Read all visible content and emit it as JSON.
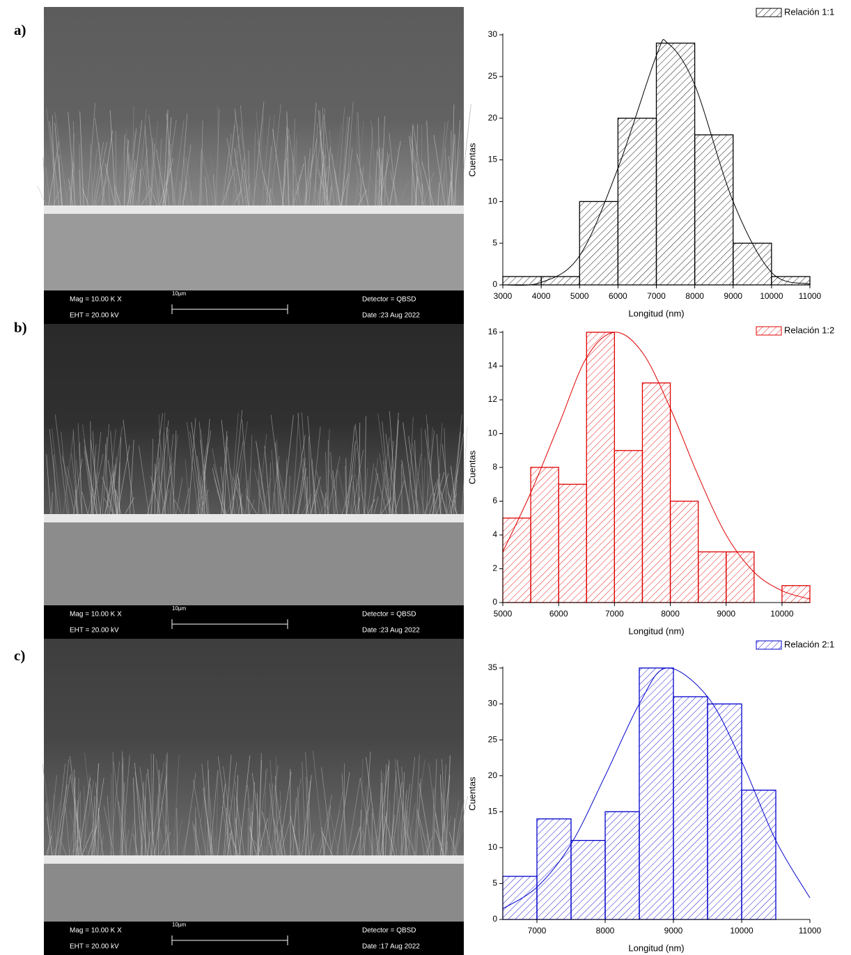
{
  "chart_data": [
    {
      "type": "histogram",
      "xlabel": "Longitud (nm)",
      "ylabel": "Cuentas",
      "hatch": true,
      "bins": [
        3000,
        4000,
        5000,
        6000,
        7000,
        8000,
        9000,
        10000,
        11000
      ],
      "series": [
        {
          "name": "Relación 1:1",
          "color": "#000000",
          "values": [
            1,
            1,
            10,
            20,
            29,
            18,
            5,
            1
          ]
        }
      ],
      "fit": {
        "x": [
          3000,
          4000,
          5000,
          6000,
          7000,
          7300,
          8000,
          9000,
          10000,
          11000
        ],
        "y": [
          0,
          0.3,
          3.5,
          14,
          27.5,
          29,
          24,
          10,
          1.5,
          0.1
        ]
      },
      "xlim": [
        3000,
        11000
      ],
      "xticks": [
        3000,
        4000,
        5000,
        6000,
        7000,
        8000,
        9000,
        10000,
        11000
      ],
      "ylim": [
        0,
        30
      ],
      "yticks": [
        0,
        5,
        10,
        15,
        20,
        25,
        30
      ]
    },
    {
      "type": "histogram",
      "xlabel": "Longitud (nm)",
      "ylabel": "Cuentas",
      "hatch": true,
      "bins": [
        5000,
        5500,
        6000,
        6500,
        7000,
        7500,
        8000,
        8500,
        9000,
        9500,
        10000,
        10500
      ],
      "series": [
        {
          "name": "Relación 1:2",
          "color": "#e00000",
          "values": [
            5,
            8,
            7,
            16,
            9,
            13,
            6,
            3,
            3,
            0,
            1
          ]
        }
      ],
      "fit": {
        "x": [
          5000,
          5500,
          6000,
          6500,
          7000,
          7500,
          8000,
          8500,
          9000,
          9500,
          10000,
          10500
        ],
        "y": [
          3,
          6.5,
          10.5,
          14.5,
          16,
          14.8,
          11.5,
          7.5,
          4,
          1.8,
          0.7,
          0.2
        ]
      },
      "xlim": [
        5000,
        10500
      ],
      "xticks": [
        5000,
        6000,
        7000,
        8000,
        9000,
        10000
      ],
      "ylim": [
        0,
        16
      ],
      "yticks": [
        0,
        2,
        4,
        6,
        8,
        10,
        12,
        14,
        16
      ]
    },
    {
      "type": "histogram",
      "xlabel": "Longitud (nm)",
      "ylabel": "Cuentas",
      "hatch": true,
      "bins": [
        6500,
        7000,
        7500,
        8000,
        8500,
        9000,
        9500,
        10000,
        10500
      ],
      "series": [
        {
          "name": "Relación 2:1",
          "color": "#0000cc",
          "values": [
            6,
            14,
            11,
            15,
            35,
            31,
            30,
            18
          ]
        }
      ],
      "fit": {
        "x": [
          6500,
          7000,
          7500,
          8000,
          8500,
          8900,
          9500,
          10000,
          10500,
          11000
        ],
        "y": [
          1.5,
          4.5,
          10.5,
          20,
          30,
          35,
          31,
          22,
          11,
          3
        ]
      },
      "xlim": [
        6500,
        11000
      ],
      "xticks": [
        7000,
        8000,
        9000,
        10000,
        11000
      ],
      "ylim": [
        0,
        35
      ],
      "yticks": [
        0,
        5,
        10,
        15,
        20,
        25,
        30,
        35
      ]
    }
  ],
  "panels": [
    {
      "label": "a)",
      "sem": {
        "mag": "Mag =  10.00 K X",
        "eht": "EHT = 20.00 kV",
        "scale": "10µm",
        "detector": "Detector = QBSD",
        "date": "Date :23 Aug 2022"
      }
    },
    {
      "label": "b)",
      "sem": {
        "mag": "Mag =  10.00 K X",
        "eht": "EHT = 20.00 kV",
        "scale": "10µm",
        "detector": "Detector = QBSD",
        "date": "Date :23 Aug 2022"
      }
    },
    {
      "label": "c)",
      "sem": {
        "mag": "Mag =  10.00 K X",
        "eht": "EHT = 20.00 kV",
        "scale": "10µm",
        "detector": "Detector = QBSD",
        "date": "Date :17 Aug 2022"
      }
    }
  ]
}
